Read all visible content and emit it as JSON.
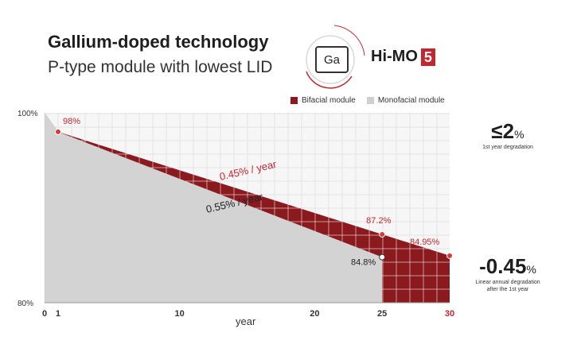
{
  "header": {
    "title": "Gallium-doped technology",
    "subtitle": "P-type module with lowest LID",
    "ga_label": "Ga",
    "brand_text": "Hi-MO",
    "brand_number": "5"
  },
  "legend": {
    "items": [
      {
        "label": "Bifacial module",
        "color": "#8b1a1f"
      },
      {
        "label": "Monofacial module",
        "color": "#cfcfcf"
      }
    ]
  },
  "side_notes": {
    "first_year_value": "≤2",
    "first_year_unit": "%",
    "first_year_caption": "1st year degradation",
    "annual_value": "-0.45",
    "annual_unit": "%",
    "annual_caption_1": "Linear annual degradation",
    "annual_caption_2": "after the 1st year"
  },
  "chart_data": {
    "type": "area",
    "xlabel": "year",
    "ylabel": "",
    "xlim": [
      0,
      30
    ],
    "ylim": [
      80,
      100
    ],
    "x_ticks": [
      "0",
      "1",
      "10",
      "20",
      "25",
      "30"
    ],
    "y_ticks": [
      "100%",
      "80%"
    ],
    "grid": true,
    "series": [
      {
        "name": "Bifacial module",
        "points": [
          [
            0,
            100
          ],
          [
            1,
            98
          ],
          [
            25,
            87.2
          ],
          [
            30,
            84.95
          ]
        ]
      },
      {
        "name": "Monofacial module",
        "points": [
          [
            0,
            100
          ],
          [
            1,
            98
          ],
          [
            25,
            84.8
          ]
        ]
      }
    ],
    "annotations": [
      {
        "label": "98%",
        "x": 1,
        "y": 98
      },
      {
        "label": "87.2%",
        "x": 25,
        "y": 87.2
      },
      {
        "label": "84.95%",
        "x": 30,
        "y": 84.95
      },
      {
        "label": "84.8%",
        "x": 25,
        "y": 84.8
      }
    ],
    "rate_labels": {
      "bifacial": "0.45% / year",
      "monofacial": "0.55% / year"
    }
  }
}
